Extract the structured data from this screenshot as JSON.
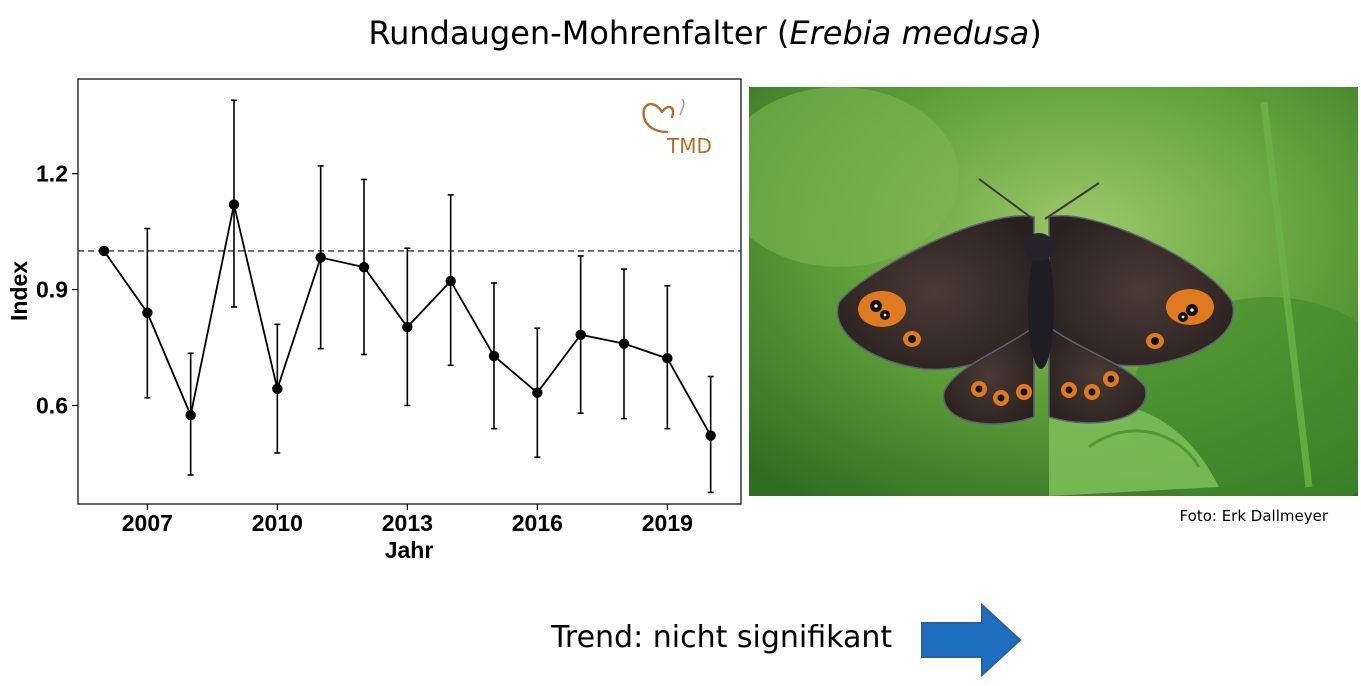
{
  "slide": {
    "title_main": "Rundaugen-Mohrenfalter (",
    "title_species": "Erebia medusa",
    "title_close": ")",
    "photo_credit": "Foto: Erk Dallmeyer",
    "trend_label": "Trend: nicht signifikant",
    "trend_arrow_color": "#1f6fc0",
    "logo_text": "TMD",
    "logo_color": "#b06e2a",
    "photo_icon": "butterfly-photo"
  },
  "chart_data": {
    "type": "line",
    "xlabel": "Jahr",
    "ylabel": "Index",
    "x": [
      2006,
      2007,
      2008,
      2009,
      2010,
      2011,
      2012,
      2013,
      2014,
      2015,
      2016,
      2017,
      2018,
      2019,
      2020
    ],
    "values": [
      1.0,
      0.84,
      0.575,
      1.12,
      0.643,
      0.983,
      0.958,
      0.803,
      0.922,
      0.728,
      0.633,
      0.783,
      0.76,
      0.722,
      0.522
    ],
    "error_low": [
      1.0,
      0.62,
      0.42,
      0.855,
      0.477,
      0.747,
      0.732,
      0.6,
      0.704,
      0.54,
      0.466,
      0.58,
      0.566,
      0.54,
      0.375
    ],
    "error_high": [
      1.0,
      1.058,
      0.735,
      1.39,
      0.81,
      1.22,
      1.185,
      1.007,
      1.145,
      0.917,
      0.8,
      0.987,
      0.953,
      0.91,
      0.675
    ],
    "reference_line": 1.0,
    "xticks": [
      "2007",
      "2010",
      "2013",
      "2016",
      "2019"
    ],
    "xtick_values": [
      2007,
      2010,
      2013,
      2016,
      2019
    ],
    "yticks": [
      "0.6",
      "0.9",
      "1.2"
    ],
    "ytick_values": [
      0.6,
      0.9,
      1.2
    ],
    "xlim": [
      2005.4,
      2020.7
    ],
    "ylim": [
      0.345,
      1.445
    ],
    "grid": false,
    "line_color": "#000000"
  }
}
